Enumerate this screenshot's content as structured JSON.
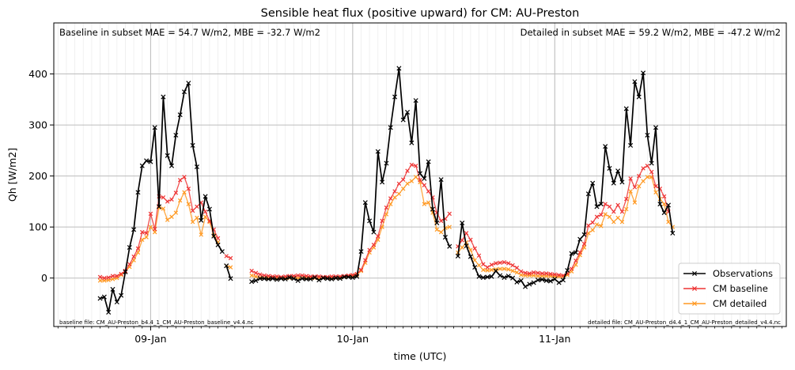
{
  "chart_data": {
    "type": "line",
    "title": "Sensible heat flux (positive upward) for CM: AU-Preston",
    "xlabel": "time (UTC)",
    "ylabel": "Qh [W/m2]",
    "ylim": [
      -95,
      500
    ],
    "xlim_hours": [
      -11.5,
      75.5
    ],
    "x_ticks": [
      {
        "hour": 0,
        "label": "09-Jan"
      },
      {
        "hour": 24,
        "label": "10-Jan"
      },
      {
        "hour": 48,
        "label": "11-Jan"
      }
    ],
    "y_ticks": [
      0,
      100,
      200,
      300,
      400
    ],
    "grid": true,
    "legend_position": "lower right",
    "annotations": {
      "baseline_stats": "Baseline in subset MAE = 54.7 W/m2, MBE = -32.7 W/m2",
      "detailed_stats": "Detailed in subset MAE = 59.2 W/m2, MBE = -47.2 W/m2",
      "baseline_file": "baseline file: CM_AU-Preston_b4.4_1_CM_AU-Preston_baseline_v4.4.nc",
      "detailed_file": "detailed file: CM_AU-Preston_d4.4_1_CM_AU-Preston_detailed_v4.4.nc"
    },
    "series": [
      {
        "name": "Observations",
        "color": "#000000",
        "segments": [
          {
            "start_hour": -6.0,
            "values": [
              -40,
              -37,
              -67,
              -22,
              -47,
              -34,
              12,
              60,
              95,
              168,
              220,
              230,
              228,
              295,
              140,
              355,
              240,
              220,
              280,
              320,
              365,
              382,
              260,
              218,
              113,
              160,
              135,
              82,
              65,
              52
            ]
          },
          {
            "start_hour": 9.0,
            "values": [
              24,
              -1
            ]
          },
          {
            "start_hour": 12.0,
            "values": [
              -7,
              -5,
              -1,
              -1,
              -2,
              -1,
              -3,
              -1,
              -2,
              1,
              -1,
              -5,
              -1,
              -2,
              -2,
              1,
              -4,
              0,
              -1,
              -2,
              0,
              -1,
              2,
              2,
              1,
              3,
              52,
              148,
              112,
              90,
              248,
              188,
              225,
              295,
              355,
              411,
              310,
              325,
              265,
              348,
              205,
              195,
              228,
              135,
              108,
              193,
              80,
              62
            ]
          },
          {
            "start_hour": 36.5,
            "values": [
              43,
              108,
              63,
              42,
              21,
              3,
              1,
              2,
              3,
              14,
              5,
              1,
              4,
              0,
              -8,
              -5,
              -17,
              -12,
              -9,
              -4,
              -3,
              -5,
              -6,
              -2,
              -9,
              -4,
              15,
              48,
              50,
              76,
              85,
              165,
              186,
              140,
              145,
              258,
              215,
              186,
              210,
              188,
              332,
              260,
              385,
              355,
              402,
              280,
              225,
              295,
              145,
              128,
              143,
              88
            ]
          }
        ]
      },
      {
        "name": "CM baseline",
        "color": "#ee3333",
        "segments": [
          {
            "start_hour": -6.0,
            "values": [
              2,
              0,
              1,
              4,
              4,
              8,
              14,
              27,
              42,
              58,
              90,
              88,
              126,
              96,
              160,
              158,
              150,
              154,
              167,
              192,
              198,
              175,
              132,
              140,
              148,
              130,
              112,
              95,
              78
            ]
          },
          {
            "start_hour": 9.0,
            "values": [
              43,
              39
            ]
          },
          {
            "start_hour": 12.0,
            "values": [
              14,
              10,
              7,
              5,
              4,
              3,
              3,
              2,
              3,
              4,
              4,
              5,
              5,
              4,
              3,
              3,
              3,
              2,
              2,
              3,
              3,
              3,
              4,
              5,
              6,
              8,
              16,
              35,
              55,
              65,
              82,
              112,
              138,
              156,
              170,
              185,
              193,
              210,
              222,
              220,
              192,
              182,
              170,
              158,
              128,
              112,
              116,
              126
            ]
          },
          {
            "start_hour": 36.5,
            "values": [
              62,
              74,
              88,
              75,
              58,
              44,
              27,
              21,
              26,
              29,
              30,
              31,
              29,
              25,
              20,
              13,
              10,
              9,
              11,
              10,
              9,
              9,
              8,
              7,
              6,
              5,
              9,
              18,
              34,
              50,
              67,
              103,
              109,
              120,
              124,
              145,
              140,
              130,
              143,
              130,
              155,
              195,
              178,
              200,
              215,
              220,
              208,
              180,
              175,
              160,
              130
            ]
          }
        ]
      },
      {
        "name": "CM detailed",
        "color": "#ff9922",
        "segments": [
          {
            "start_hour": -6.0,
            "values": [
              -5,
              -5,
              -4,
              -2,
              0,
              6,
              13,
              22,
              35,
              50,
              75,
              80,
              100,
              90,
              138,
              136,
              114,
              120,
              128,
              152,
              168,
              145,
              110,
              118,
              85,
              120,
              110,
              85,
              70
            ]
          },
          {
            "start_hour": 9.0,
            "values": [
              24,
              21
            ]
          },
          {
            "start_hour": 12.0,
            "values": [
              5,
              3,
              1,
              0,
              0,
              0,
              0,
              0,
              0,
              0,
              0,
              0,
              0,
              0,
              0,
              0,
              0,
              0,
              0,
              0,
              0,
              1,
              2,
              3,
              4,
              6,
              14,
              30,
              50,
              60,
              75,
              100,
              125,
              145,
              158,
              165,
              175,
              185,
              190,
              198,
              188,
              145,
              148,
              128,
              95,
              90,
              98,
              100
            ]
          },
          {
            "start_hour": 36.5,
            "values": [
              50,
              60,
              70,
              55,
              35,
              25,
              16,
              15,
              16,
              17,
              18,
              18,
              17,
              14,
              11,
              6,
              5,
              5,
              5,
              4,
              4,
              4,
              4,
              3,
              3,
              3,
              6,
              13,
              26,
              45,
              60,
              88,
              94,
              105,
              102,
              125,
              120,
              110,
              118,
              110,
              135,
              170,
              148,
              180,
              190,
              198,
              198,
              168,
              155,
              145,
              110,
              100
            ]
          }
        ]
      }
    ]
  }
}
